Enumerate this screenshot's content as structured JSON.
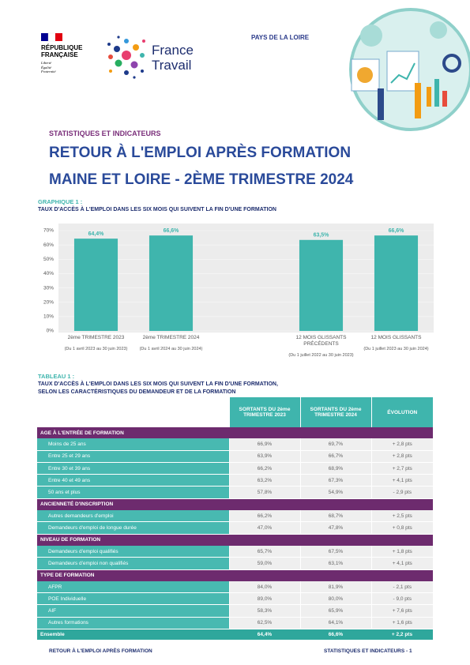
{
  "header": {
    "republic": [
      "RÉPUBLIQUE",
      "FRANÇAISE"
    ],
    "motto": [
      "Liberté",
      "Égalité",
      "Fraternité"
    ],
    "brand": [
      "France",
      "Travail"
    ],
    "region": "PAYS DE LA LOIRE"
  },
  "section": "STATISTIQUES ET INDICATEURS",
  "title": [
    "RETOUR À L'EMPLOI APRÈS FORMATION",
    "MAINE ET LOIRE -  2ÈME TRIMESTRE 2024"
  ],
  "chart_data": {
    "type": "bar",
    "label": "GRAPHIQUE 1 :",
    "title": "TAUX D'ACCÈS À L'EMPLOI DANS LES SIX MOIS QUI SUIVENT LA FIN D'UNE FORMATION",
    "categories": [
      "2ème TRIMESTRE 2023",
      "2ème TRIMESTRE 2024",
      null,
      "12 MOIS GLISSANTS PRÉCÉDENTS",
      "12 MOIS GLISSANTS"
    ],
    "notes": [
      "(Du 1 avril 2023 au 30 juin 2023)",
      "(Du 1 avril 2024 au 30 juin 2024)",
      null,
      "(Du 1 juillet 2022 au 30 juin 2023)",
      "(Du 1 juillet 2023 au 30 juin 2024)"
    ],
    "values": [
      64.4,
      66.6,
      null,
      63.5,
      66.6
    ],
    "value_labels": [
      "64,4%",
      "66,6%",
      null,
      "63,5%",
      "66,6%"
    ],
    "color": "#3fb5ad",
    "ylim": [
      0,
      70
    ],
    "yticks": [
      {
        "value": 0,
        "label": "0%"
      },
      {
        "value": 10,
        "label": "10%"
      },
      {
        "value": 20,
        "label": "20%"
      },
      {
        "value": 30,
        "label": "30%"
      },
      {
        "value": 40,
        "label": "40%"
      },
      {
        "value": 50,
        "label": "50%"
      },
      {
        "value": 60,
        "label": "60%"
      },
      {
        "value": 70,
        "label": "70%"
      }
    ],
    "grid": true
  },
  "table": {
    "label": "TABLEAU 1 :",
    "title": [
      "TAUX D'ACCÈS À L'EMPLOI DANS LES SIX MOIS QUI SUIVENT LA FIN D'UNE FORMATION,",
      "SELON LES CARACTÉRISTIQUES DU DEMANDEUR ET DE LA FORMATION"
    ],
    "columns": [
      "SORTANTS DU 2ème TRIMESTRE 2023",
      "SORTANTS DU 2ème TRIMESTRE 2024",
      "ÉVOLUTION"
    ],
    "groups": [
      {
        "title": "AGE À L'ENTRÉE DE FORMATION",
        "rows": [
          [
            "Moins de 25 ans",
            "66,9%",
            "69,7%",
            "+ 2,8 pts"
          ],
          [
            "Entre 25 et 29 ans",
            "63,9%",
            "66,7%",
            "+ 2,8 pts"
          ],
          [
            "Entre 30 et 39 ans",
            "66,2%",
            "68,9%",
            "+ 2,7 pts"
          ],
          [
            "Entre 40 et 49 ans",
            "63,2%",
            "67,3%",
            "+ 4,1 pts"
          ],
          [
            "50 ans et plus",
            "57,8%",
            "54,9%",
            "- 2,9 pts"
          ]
        ]
      },
      {
        "title": "ANCIENNETÉ D'INSCRIPTION",
        "rows": [
          [
            "Autres demandeurs d'emploi",
            "66,2%",
            "68,7%",
            "+ 2,5 pts"
          ],
          [
            "Demandeurs d'emploi de longue durée",
            "47,0%",
            "47,8%",
            "+ 0,8 pts"
          ]
        ]
      },
      {
        "title": "NIVEAU DE FORMATION",
        "rows": [
          [
            "Demandeurs d'emploi qualifiés",
            "65,7%",
            "67,5%",
            "+ 1,8 pts"
          ],
          [
            "Demandeurs d'emploi non qualifiés",
            "59,0%",
            "63,1%",
            "+ 4,1 pts"
          ]
        ]
      },
      {
        "title": "TYPE DE FORMATION",
        "rows": [
          [
            "AFPR",
            "84,0%",
            "81,9%",
            "- 2,1 pts"
          ],
          [
            "POE Individuelle",
            "89,0%",
            "80,0%",
            "- 9,0 pts"
          ],
          [
            "AIF",
            "58,3%",
            "65,9%",
            "+ 7,6 pts"
          ],
          [
            "Autres formations",
            "62,5%",
            "64,1%",
            "+ 1,6 pts"
          ]
        ]
      }
    ],
    "total": [
      "Ensemble",
      "64,4%",
      "66,6%",
      "+ 2,2 pts"
    ]
  },
  "footer": {
    "left": "RETOUR À L'EMPLOI APRÈS FORMATION",
    "right": "STATISTIQUES ET INDICATEURS -",
    "page": "1"
  }
}
